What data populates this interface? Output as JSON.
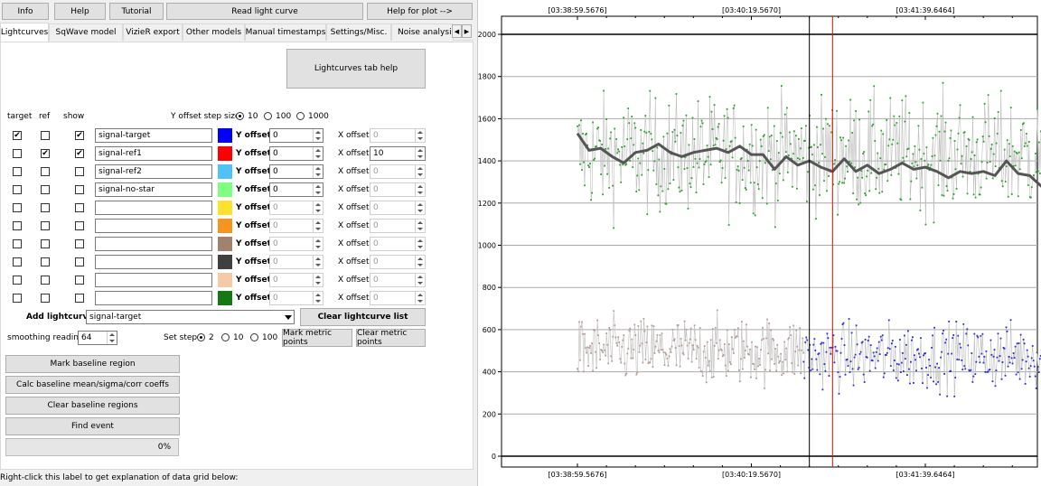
{
  "top_buttons": {
    "info": "Info",
    "help": "Help",
    "tutorial": "Tutorial",
    "read_light_curve": "Read light curve",
    "help_for_plot": "Help for plot -->"
  },
  "tabs": [
    {
      "label": "Lightcurves",
      "active": true
    },
    {
      "label": "SqWave model"
    },
    {
      "label": "VizieR export"
    },
    {
      "label": "Other models"
    },
    {
      "label": "Manual timestamps"
    },
    {
      "label": "Settings/Misc."
    },
    {
      "label": "Noise analysis/I"
    }
  ],
  "lightcurves": {
    "help_button": "Lightcurves tab help",
    "columns": {
      "target": "target",
      "ref": "ref",
      "show": "show"
    },
    "y_offset_step": {
      "label": "Y offset step size:",
      "options": [
        "10",
        "100",
        "1000"
      ],
      "selected": "10"
    },
    "y_offset_label": "Y offset:",
    "x_offset_label": "X offset:",
    "rows": [
      {
        "target": true,
        "ref": false,
        "show": true,
        "name": "signal-target",
        "color": "#0000ff",
        "y_offset": "0",
        "x_offset": "0",
        "y_enabled": true,
        "x_enabled": false
      },
      {
        "target": false,
        "ref": true,
        "show": true,
        "name": "signal-ref1",
        "color": "#ff0000",
        "y_offset": "0",
        "x_offset": "10",
        "y_enabled": true,
        "x_enabled": true
      },
      {
        "target": false,
        "ref": false,
        "show": false,
        "name": "signal-ref2",
        "color": "#4fc3f7",
        "y_offset": "0",
        "x_offset": "0",
        "y_enabled": true,
        "x_enabled": false
      },
      {
        "target": false,
        "ref": false,
        "show": false,
        "name": "signal-no-star",
        "color": "#7fff7f",
        "y_offset": "0",
        "x_offset": "0",
        "y_enabled": true,
        "x_enabled": false
      },
      {
        "target": false,
        "ref": false,
        "show": false,
        "name": "",
        "color": "#fde12d",
        "y_offset": "0",
        "x_offset": "0",
        "y_enabled": false,
        "x_enabled": false
      },
      {
        "target": false,
        "ref": false,
        "show": false,
        "name": "",
        "color": "#f7941d",
        "y_offset": "0",
        "x_offset": "0",
        "y_enabled": false,
        "x_enabled": false
      },
      {
        "target": false,
        "ref": false,
        "show": false,
        "name": "",
        "color": "#a0826d",
        "y_offset": "0",
        "x_offset": "0",
        "y_enabled": false,
        "x_enabled": false
      },
      {
        "target": false,
        "ref": false,
        "show": false,
        "name": "",
        "color": "#404040",
        "y_offset": "0",
        "x_offset": "0",
        "y_enabled": false,
        "x_enabled": false
      },
      {
        "target": false,
        "ref": false,
        "show": false,
        "name": "",
        "color": "#f5cba7",
        "y_offset": "0",
        "x_offset": "0",
        "y_enabled": false,
        "x_enabled": false
      },
      {
        "target": false,
        "ref": false,
        "show": false,
        "name": "",
        "color": "#137a13",
        "y_offset": "0",
        "x_offset": "0",
        "y_enabled": false,
        "x_enabled": false
      }
    ],
    "add_lightcurve_label": "Add lightcurve",
    "add_lightcurve_value": "signal-target",
    "clear_lightcurve_list": "Clear lightcurve list",
    "smoothing_label": "smoothing readings",
    "smoothing_value": "64",
    "set_step": {
      "label": "Set step:",
      "options": [
        "2",
        "10",
        "100"
      ],
      "selected": "2"
    },
    "mark_metric_points": "Mark metric points",
    "clear_metric_points": "Clear metric points",
    "mark_baseline_region": "Mark baseline region",
    "calc_baseline": "Calc baseline mean/sigma/corr coeffs",
    "clear_baseline_regions": "Clear baseline regions",
    "find_event": "Find event",
    "progress_text": "0%",
    "progress_fraction": 0.0,
    "grid_hint": "Right-click this label to get explanation of data grid below:"
  },
  "chart_data": {
    "type": "scatter",
    "ylim": [
      0,
      2000
    ],
    "yticks": [
      0,
      200,
      400,
      600,
      800,
      1000,
      1200,
      1400,
      1600,
      1800,
      2000
    ],
    "xticks": [
      "[03:38:59.5676]",
      "[03:40:19.5670]",
      "[03:41:39.6464]"
    ],
    "xtick_positions": [
      0,
      60,
      120
    ],
    "xlim": [
      -17,
      180
    ],
    "grid": true,
    "series": [
      {
        "color": "#2ca02c",
        "style": "points",
        "x_range": [
          0,
          178
        ],
        "y_center": 1430,
        "y_spread": 190
      },
      {
        "color": "#555555",
        "style": "smoothed-line",
        "x": [
          0,
          4,
          8,
          12,
          16,
          20,
          24,
          28,
          32,
          36,
          40,
          44,
          48,
          52,
          56,
          60,
          64,
          68,
          72,
          76,
          80,
          84,
          88,
          92,
          96,
          100,
          104,
          108,
          112,
          116,
          120,
          124,
          128,
          132,
          136,
          140,
          144,
          148,
          152,
          156,
          160,
          164,
          168,
          172,
          176,
          178
        ],
        "values": [
          1530,
          1450,
          1460,
          1420,
          1390,
          1440,
          1450,
          1480,
          1440,
          1420,
          1440,
          1450,
          1460,
          1440,
          1470,
          1430,
          1430,
          1360,
          1420,
          1380,
          1400,
          1370,
          1350,
          1410,
          1350,
          1380,
          1340,
          1360,
          1390,
          1360,
          1370,
          1350,
          1320,
          1350,
          1340,
          1350,
          1330,
          1400,
          1340,
          1330,
          1280,
          1270,
          1340,
          1330,
          1390,
          1380
        ]
      },
      {
        "color": "#b59d94",
        "style": "points",
        "x_range": [
          0,
          78
        ],
        "y_center": 500,
        "y_spread": 110
      },
      {
        "color": "#2b2bd6",
        "style": "points",
        "x_range": [
          78,
          178
        ],
        "y_center": 475,
        "y_spread": 110
      }
    ],
    "cursor_lines": [
      {
        "x": 80,
        "color": "#000000"
      },
      {
        "x": 88,
        "color": "#ff0000"
      }
    ]
  }
}
